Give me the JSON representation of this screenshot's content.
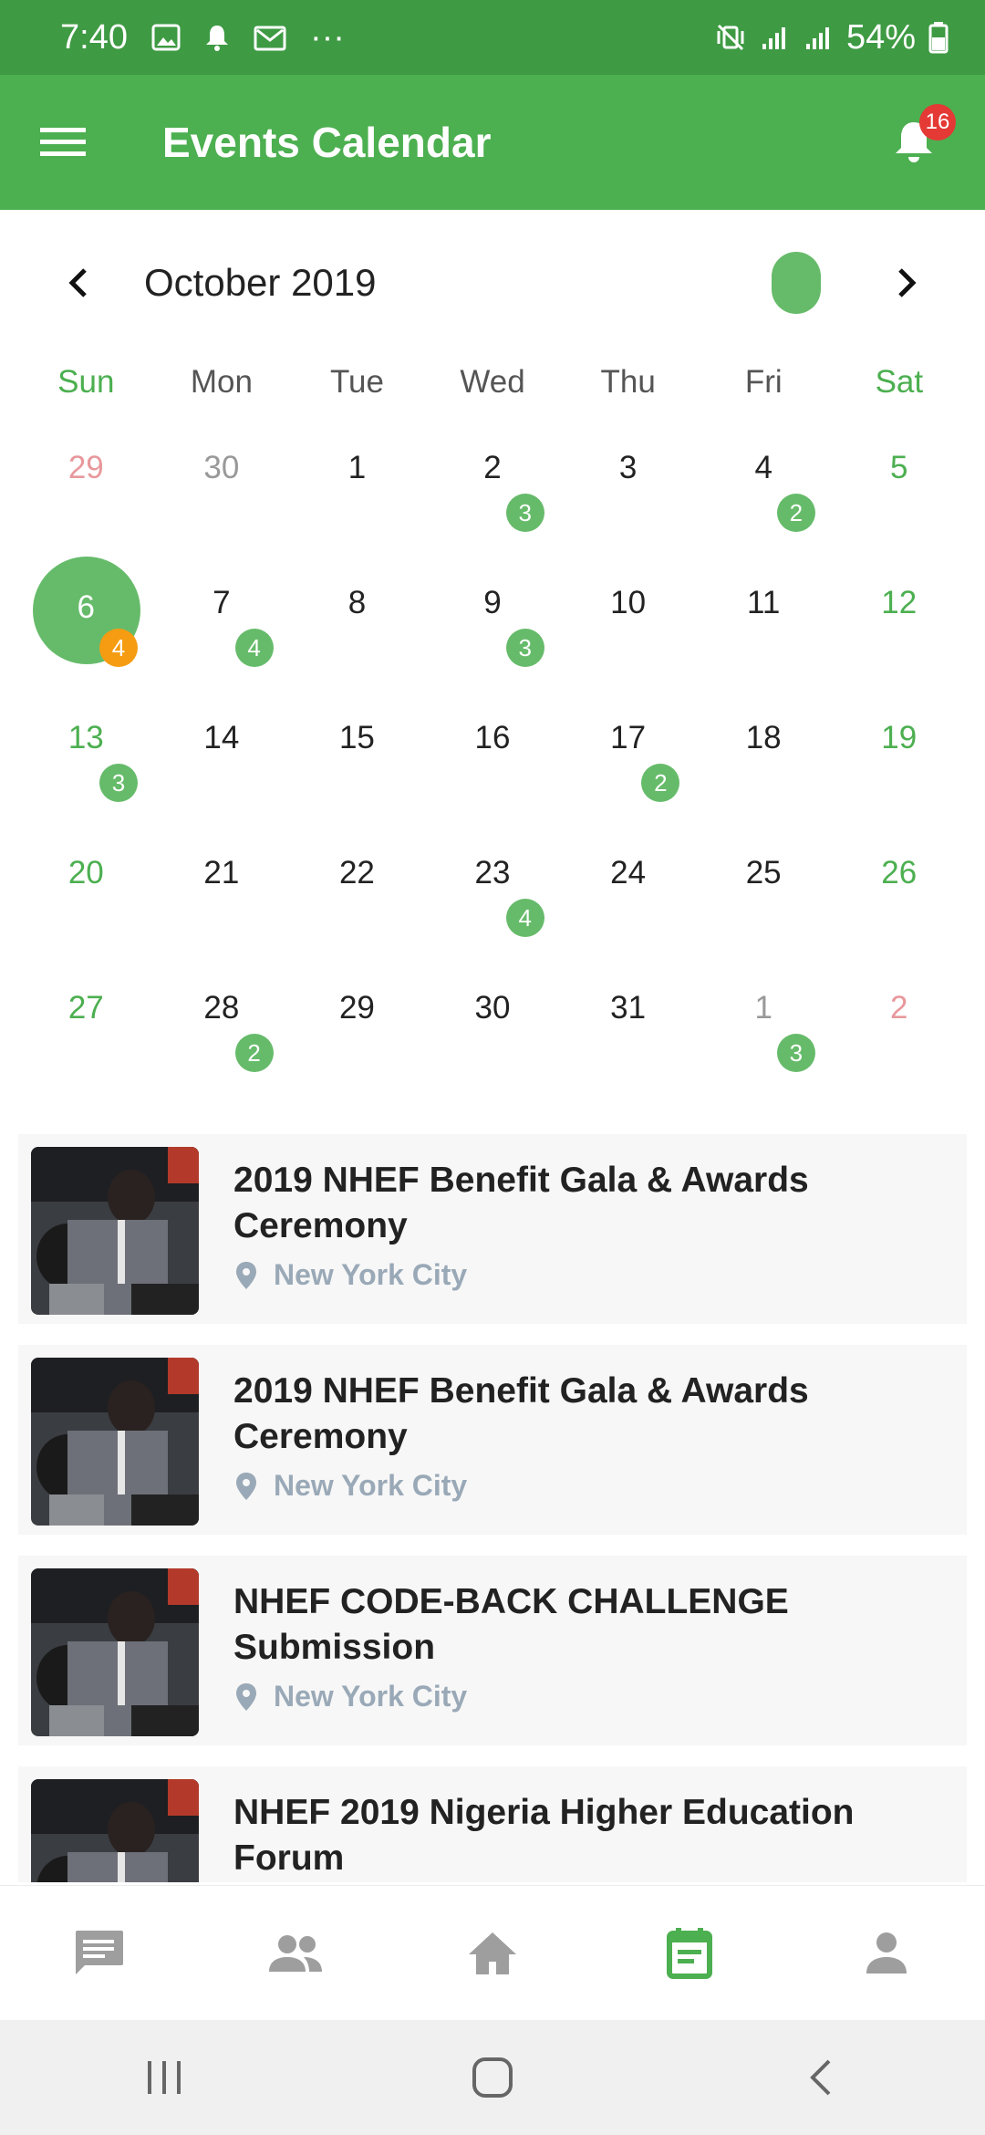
{
  "status_bar": {
    "time": "7:40",
    "more": "···",
    "battery": "54%"
  },
  "app_bar": {
    "title": "Events Calendar",
    "notification_count": "16"
  },
  "calendar": {
    "month_label": "October 2019",
    "weekdays": [
      "Sun",
      "Mon",
      "Tue",
      "Wed",
      "Thu",
      "Fri",
      "Sat"
    ],
    "weeks": [
      [
        {
          "d": "29",
          "out": true
        },
        {
          "d": "30",
          "out": true
        },
        {
          "d": "1"
        },
        {
          "d": "2",
          "count": "3"
        },
        {
          "d": "3"
        },
        {
          "d": "4",
          "count": "2"
        },
        {
          "d": "5"
        }
      ],
      [
        {
          "d": "6",
          "selected": true,
          "count": "4",
          "count_color": "orange"
        },
        {
          "d": "7",
          "count": "4"
        },
        {
          "d": "8"
        },
        {
          "d": "9",
          "count": "3"
        },
        {
          "d": "10"
        },
        {
          "d": "11"
        },
        {
          "d": "12"
        }
      ],
      [
        {
          "d": "13",
          "count": "3"
        },
        {
          "d": "14"
        },
        {
          "d": "15"
        },
        {
          "d": "16"
        },
        {
          "d": "17",
          "count": "2"
        },
        {
          "d": "18"
        },
        {
          "d": "19"
        }
      ],
      [
        {
          "d": "20"
        },
        {
          "d": "21"
        },
        {
          "d": "22"
        },
        {
          "d": "23",
          "count": "4"
        },
        {
          "d": "24"
        },
        {
          "d": "25"
        },
        {
          "d": "26"
        }
      ],
      [
        {
          "d": "27"
        },
        {
          "d": "28",
          "count": "2"
        },
        {
          "d": "29"
        },
        {
          "d": "30"
        },
        {
          "d": "31"
        },
        {
          "d": "1",
          "out": true,
          "count": "3"
        },
        {
          "d": "2",
          "out": true
        }
      ]
    ]
  },
  "events": [
    {
      "title": "2019 NHEF Benefit Gala & Awards Ceremony",
      "location": "New York City"
    },
    {
      "title": "2019 NHEF Benefit Gala & Awards Ceremony",
      "location": "New York City"
    },
    {
      "title": "NHEF CODE-BACK CHALLENGE Submission",
      "location": "New York City"
    },
    {
      "title": "NHEF 2019 Nigeria Higher Education Forum",
      "location": ""
    }
  ],
  "bottom_nav": {
    "items": [
      {
        "icon": "chat-icon",
        "active": false
      },
      {
        "icon": "people-icon",
        "active": false
      },
      {
        "icon": "home-icon",
        "active": false
      },
      {
        "icon": "calendar-icon",
        "active": true
      },
      {
        "icon": "person-icon",
        "active": false
      }
    ]
  },
  "colors": {
    "primary": "#4caf50",
    "status_bar": "#3e9a43",
    "badge_orange": "#f59c12",
    "notification_red": "#e53935",
    "location_gray": "#9aa9b7"
  }
}
